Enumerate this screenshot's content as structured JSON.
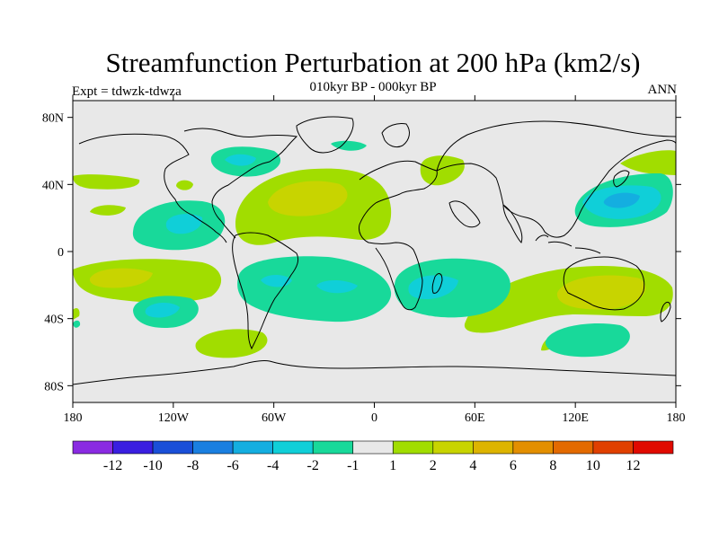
{
  "title": "Streamfunction Perturbation at 200 hPa (km2/s)",
  "subtitle": "010kyr BP - 000kyr BP",
  "left_label": "Expt = tdwzk-tdwza",
  "right_label": "ANN",
  "map": {
    "projection": "cylindrical equidistant",
    "lon_range": [
      -180,
      180
    ],
    "lat_range": [
      -90,
      90
    ],
    "lat_ticks": [
      "80N",
      "40N",
      "0",
      "40S",
      "80S"
    ],
    "lon_ticks": [
      "180",
      "120W",
      "60W",
      "0",
      "60E",
      "120E",
      "180"
    ]
  },
  "colorbar": {
    "colors": [
      "#8a2be2",
      "#3a1ee0",
      "#1a4fd8",
      "#1a7fe0",
      "#14aee0",
      "#10cfd8",
      "#18d99a",
      "#e8e8e8",
      "#a1dd00",
      "#c8d400",
      "#ddb400",
      "#e38f00",
      "#e36a00",
      "#e04000",
      "#e00a00"
    ],
    "labels": [
      "-12",
      "-10",
      "-8",
      "-6",
      "-4",
      "-2",
      "-1",
      "1",
      "2",
      "4",
      "6",
      "8",
      "10",
      "12"
    ]
  },
  "fields": [
    {
      "level": "pos1",
      "color": "#a1dd00",
      "regions": [
        "North Atlantic high",
        "Mediterranean",
        "Arabia-Sahara",
        "Southern Indian Ocean",
        "South Pacific subtropics",
        "Australia",
        "South Atlantic south",
        "Southern Indian south",
        "Aleutians"
      ]
    },
    {
      "level": "pos2",
      "color": "#c8d400",
      "regions": [
        "North Atlantic core",
        "Australia core",
        "South Pacific core"
      ]
    },
    {
      "level": "neg1",
      "color": "#18d99a",
      "regions": [
        "Hudson Bay",
        "Eastern Pacific north",
        "South Atlantic",
        "Southern Africa",
        "Southeast Pacific",
        "Southern Ocean south of Australia",
        "Northwest Pacific"
      ]
    },
    {
      "level": "neg2",
      "color": "#10cfd8",
      "regions": [
        "Eastern Pacific core",
        "South Atlantic core",
        "Southern Africa core",
        "Northwest Pacific core",
        "Southeast Pacific core"
      ]
    }
  ]
}
